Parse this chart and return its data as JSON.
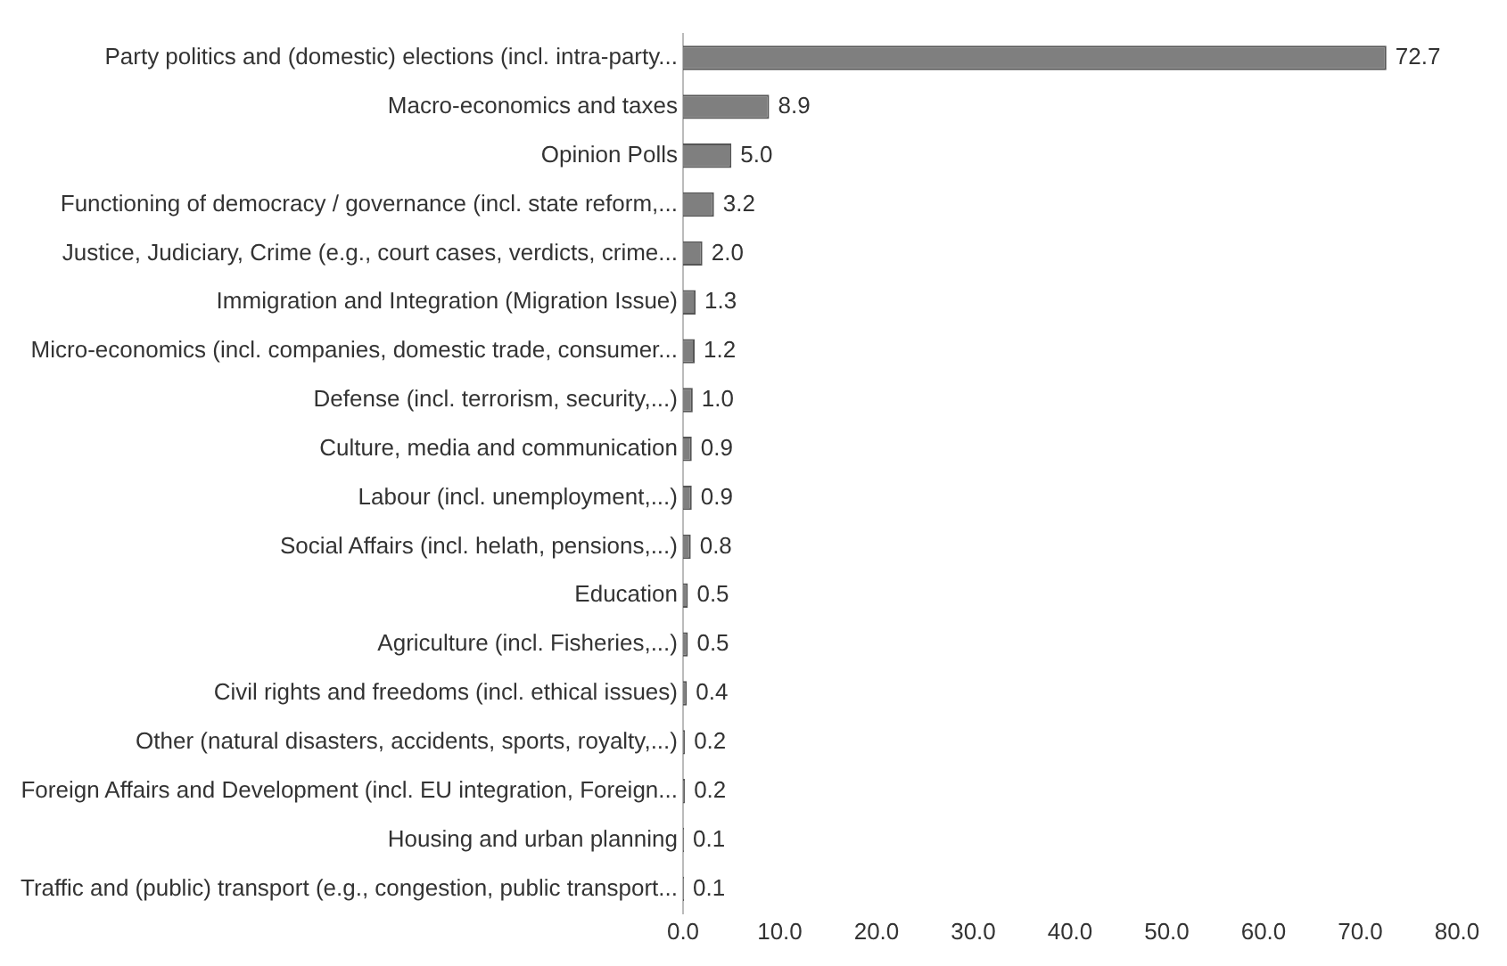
{
  "chart_data": {
    "type": "bar",
    "orientation": "horizontal",
    "categories": [
      "Party politics and (domestic) elections (incl. intra-party...",
      "Macro-economics and taxes",
      "Opinion Polls",
      "Functioning of democracy / governance (incl. state reform,...",
      "Justice, Judiciary, Crime (e.g., court cases, verdicts, crime...",
      "Immigration and Integration (Migration Issue)",
      "Micro-economics (incl. companies, domestic trade, consumer...",
      "Defense (incl. terrorism, security,...)",
      "Culture, media and communication",
      "Labour (incl. unemployment,...)",
      "Social Affairs (incl. helath, pensions,...)",
      "Education",
      "Agriculture (incl. Fisheries,...)",
      "Civil rights and freedoms (incl. ethical issues)",
      "Other (natural disasters, accidents, sports, royalty,...)",
      "Foreign Affairs and Development (incl. EU integration, Foreign...",
      "Housing and urban planning",
      "Traffic and (public) transport (e.g., congestion, public transport..."
    ],
    "values": [
      72.7,
      8.9,
      5.0,
      3.2,
      2.0,
      1.3,
      1.2,
      1.0,
      0.9,
      0.9,
      0.8,
      0.5,
      0.5,
      0.4,
      0.2,
      0.2,
      0.1,
      0.1
    ],
    "value_labels": [
      "72.7",
      "8.9",
      "5.0",
      "3.2",
      "2.0",
      "1.3",
      "1.2",
      "1.0",
      "0.9",
      "0.9",
      "0.8",
      "0.5",
      "0.5",
      "0.4",
      "0.2",
      "0.2",
      "0.1",
      "0.1"
    ],
    "color": "#7f7f7f",
    "xlim": [
      0,
      80
    ],
    "xticks": [
      {
        "value": 0,
        "label": "0.0"
      },
      {
        "value": 10,
        "label": "10.0"
      },
      {
        "value": 20,
        "label": "20.0"
      },
      {
        "value": 30,
        "label": "30.0"
      },
      {
        "value": 40,
        "label": "40.0"
      },
      {
        "value": 50,
        "label": "50.0"
      },
      {
        "value": 60,
        "label": "60.0"
      },
      {
        "value": 70,
        "label": "70.0"
      },
      {
        "value": 80,
        "label": "80.0"
      }
    ],
    "grid": false,
    "legend": false
  }
}
